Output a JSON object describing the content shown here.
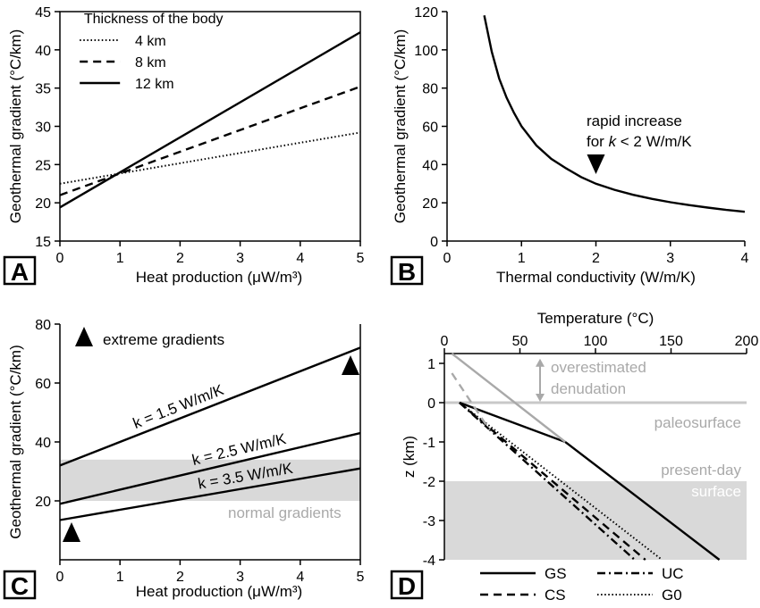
{
  "chart_data": [
    {
      "panel": "A",
      "type": "line",
      "xlabel": "Heat production (μW/m³)",
      "ylabel": "Geothermal gradient (°C/km)",
      "xlim": [
        0,
        5
      ],
      "ylim": [
        15,
        45
      ],
      "xticks": [
        "0",
        "1",
        "2",
        "3",
        "4",
        "5"
      ],
      "yticks": [
        "15",
        "20",
        "25",
        "30",
        "35",
        "40",
        "45"
      ],
      "legend_title": "Thickness of the body",
      "legend_position": "top-left",
      "series": [
        {
          "name": "4 km",
          "style": "dotted",
          "x": [
            0,
            5
          ],
          "y": [
            22.5,
            29.2
          ]
        },
        {
          "name": "8 km",
          "style": "dashed",
          "x": [
            0,
            5
          ],
          "y": [
            21.0,
            35.2
          ]
        },
        {
          "name": "12 km",
          "style": "solid",
          "x": [
            0,
            5
          ],
          "y": [
            19.4,
            42.3
          ]
        }
      ]
    },
    {
      "panel": "B",
      "type": "line",
      "xlabel": "Thermal conductivity (W/m/K)",
      "ylabel": "Geothermal gradient (°C/km)",
      "xlim": [
        0,
        4
      ],
      "ylim": [
        0,
        120
      ],
      "xticks": [
        "0",
        "1",
        "2",
        "3",
        "4"
      ],
      "yticks": [
        "0",
        "20",
        "40",
        "60",
        "80",
        "100",
        "120"
      ],
      "annotation": {
        "line1": "rapid increase",
        "line2_prefix": "for ",
        "line2_italic": "k",
        "line2_suffix": " < 2 W/m/K",
        "marker_x": 2
      },
      "series": [
        {
          "name": "",
          "style": "solid",
          "x": [
            0.5,
            0.6,
            0.7,
            0.8,
            0.9,
            1.0,
            1.2,
            1.4,
            1.6,
            1.8,
            2.0,
            2.25,
            2.5,
            2.75,
            3.0,
            3.25,
            3.5,
            3.75,
            4.0
          ],
          "y": [
            118,
            99,
            85,
            75,
            67,
            60,
            50,
            43,
            38,
            33.5,
            30,
            26.8,
            24.2,
            22.1,
            20.3,
            18.8,
            17.5,
            16.3,
            15.3
          ]
        }
      ]
    },
    {
      "panel": "C",
      "type": "line",
      "xlabel": "Heat production (μW/m³)",
      "ylabel": "Geothermal gradient (°C/km)",
      "xlim": [
        0,
        5
      ],
      "ylim": [
        0,
        80
      ],
      "xticks": [
        "0",
        "1",
        "2",
        "3",
        "4",
        "5"
      ],
      "yticks": [
        "20",
        "40",
        "60",
        "80"
      ],
      "normal_band": [
        20,
        34
      ],
      "normal_label": "normal gradients",
      "extreme_label": "extreme gradients",
      "series": [
        {
          "name": "k = 1.5 W/m/K",
          "style": "solid",
          "x": [
            0,
            5
          ],
          "y": [
            32,
            72
          ]
        },
        {
          "name": "k = 2.5 W/m/K",
          "style": "solid",
          "x": [
            0,
            5
          ],
          "y": [
            19,
            43
          ]
        },
        {
          "name": "k = 3.5 W/m/K",
          "style": "solid",
          "x": [
            0,
            5
          ],
          "y": [
            13.5,
            31
          ]
        }
      ]
    },
    {
      "panel": "D",
      "type": "line",
      "xlabel": "Temperature (°C)",
      "ylabel": "z (km)",
      "xlim": [
        0,
        200
      ],
      "ylim": [
        -4,
        1.25
      ],
      "xticks": [
        "0",
        "50",
        "100",
        "150",
        "200"
      ],
      "yticks": [
        "1",
        "0",
        "-1",
        "-2",
        "-3",
        "-4"
      ],
      "overestimated_label": [
        "overestimated",
        "denudation"
      ],
      "paleosurface_label": "paleosurface",
      "present_label": [
        "present-day",
        "surface"
      ],
      "gray_band_z": [
        -2,
        -4
      ],
      "series": [
        {
          "name": "GS",
          "style": "solid",
          "x": [
            10,
            80,
            182
          ],
          "y": [
            0,
            -1,
            -4
          ]
        },
        {
          "name": "UC",
          "style": "dashdot",
          "x": [
            10,
            126
          ],
          "y": [
            0,
            -4
          ]
        },
        {
          "name": "CS",
          "style": "dashed",
          "x": [
            10,
            133
          ],
          "y": [
            0,
            -4
          ]
        },
        {
          "name": "G0",
          "style": "dotted",
          "x": [
            10,
            144
          ],
          "y": [
            0,
            -4
          ]
        },
        {
          "name": "",
          "style": "gray-solid",
          "x": [
            5,
            80
          ],
          "y": [
            1.25,
            -1
          ]
        },
        {
          "name": "",
          "style": "gray-dashed",
          "x": [
            5,
            30
          ],
          "y": [
            0.75,
            -0.7
          ]
        }
      ]
    }
  ]
}
